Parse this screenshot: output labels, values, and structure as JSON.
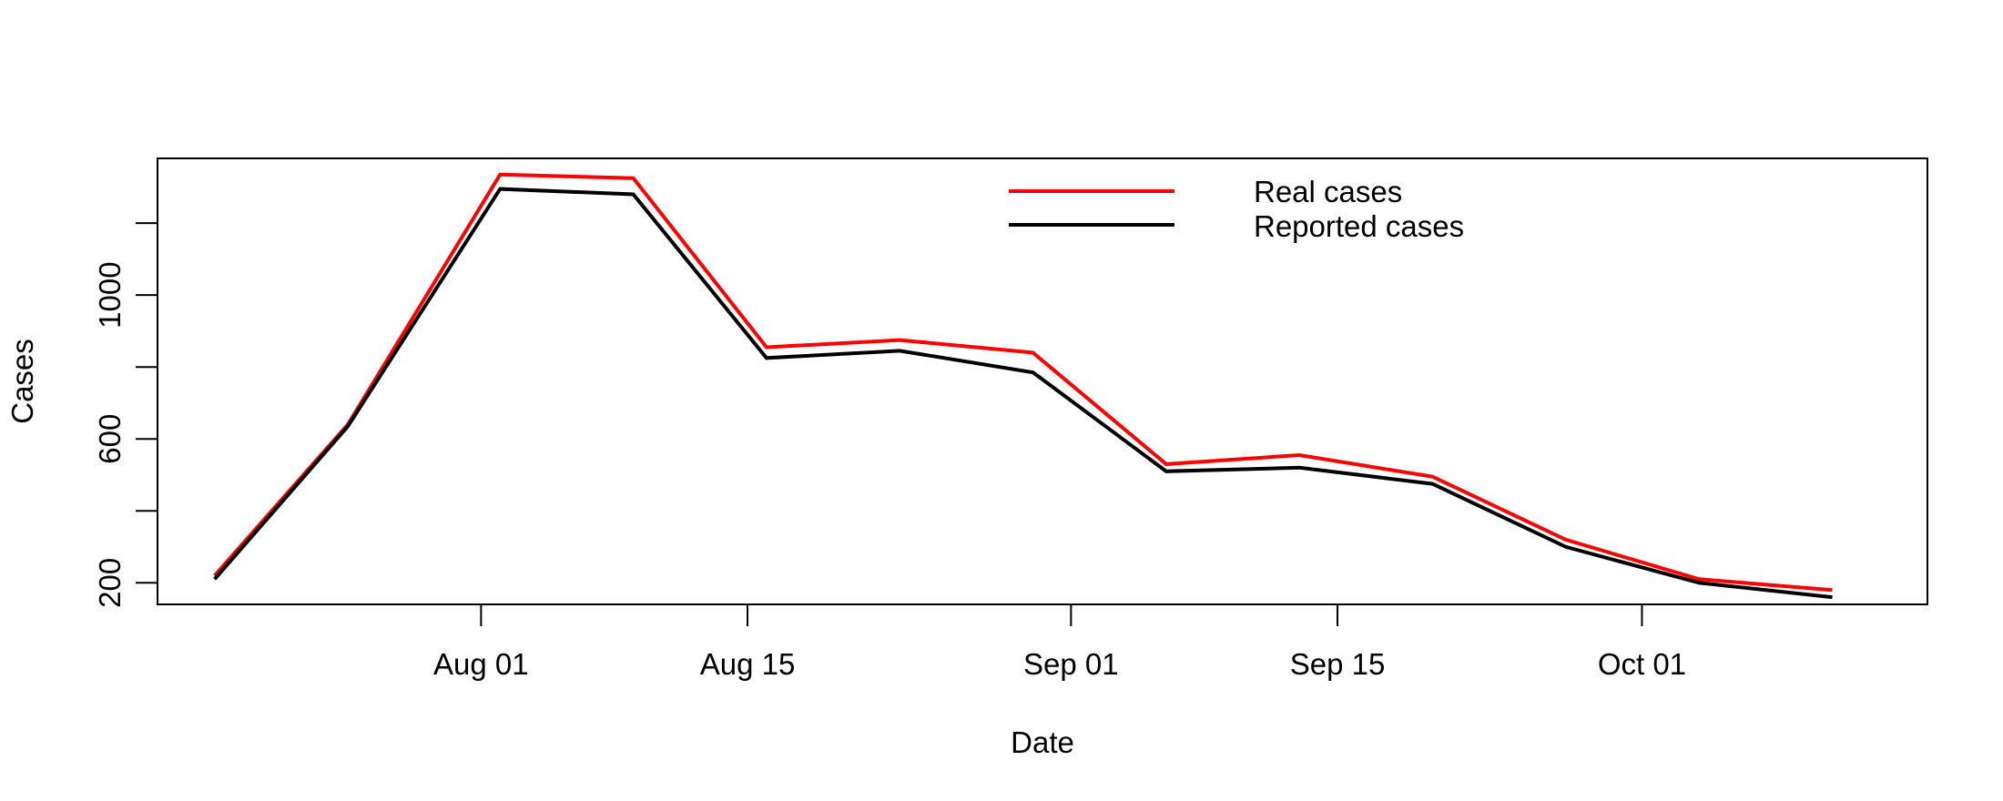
{
  "chart_data": {
    "type": "line",
    "title": "",
    "xlabel": "Date",
    "ylabel": "Cases",
    "x": [
      "2021-07-18",
      "2021-07-25",
      "2021-08-02",
      "2021-08-09",
      "2021-08-16",
      "2021-08-23",
      "2021-08-30",
      "2021-09-06",
      "2021-09-13",
      "2021-09-20",
      "2021-09-27",
      "2021-10-04",
      "2021-10-11"
    ],
    "series": [
      {
        "name": "Real cases",
        "color": "#ff0000",
        "values": [
          220,
          640,
          1335,
          1325,
          855,
          875,
          840,
          530,
          555,
          495,
          320,
          210,
          180
        ]
      },
      {
        "name": "Reported cases",
        "color": "#000000",
        "values": [
          210,
          635,
          1295,
          1280,
          825,
          845,
          785,
          510,
          520,
          475,
          300,
          200,
          160
        ]
      }
    ],
    "xlim": [
      "2021-07-15",
      "2021-10-16"
    ],
    "ylim": [
      140,
      1380
    ],
    "x_ticks": [
      {
        "date": "2021-08-01",
        "label": "Aug 01"
      },
      {
        "date": "2021-08-15",
        "label": "Aug 15"
      },
      {
        "date": "2021-09-01",
        "label": "Sep 01"
      },
      {
        "date": "2021-09-15",
        "label": "Sep 15"
      },
      {
        "date": "2021-10-01",
        "label": "Oct 01"
      }
    ],
    "y_ticks": [
      200,
      400,
      600,
      800,
      1000,
      1200
    ],
    "y_tick_labels": [
      "200",
      "",
      "600",
      "",
      "1000",
      ""
    ],
    "grid": false,
    "legend_position": "top-center"
  }
}
